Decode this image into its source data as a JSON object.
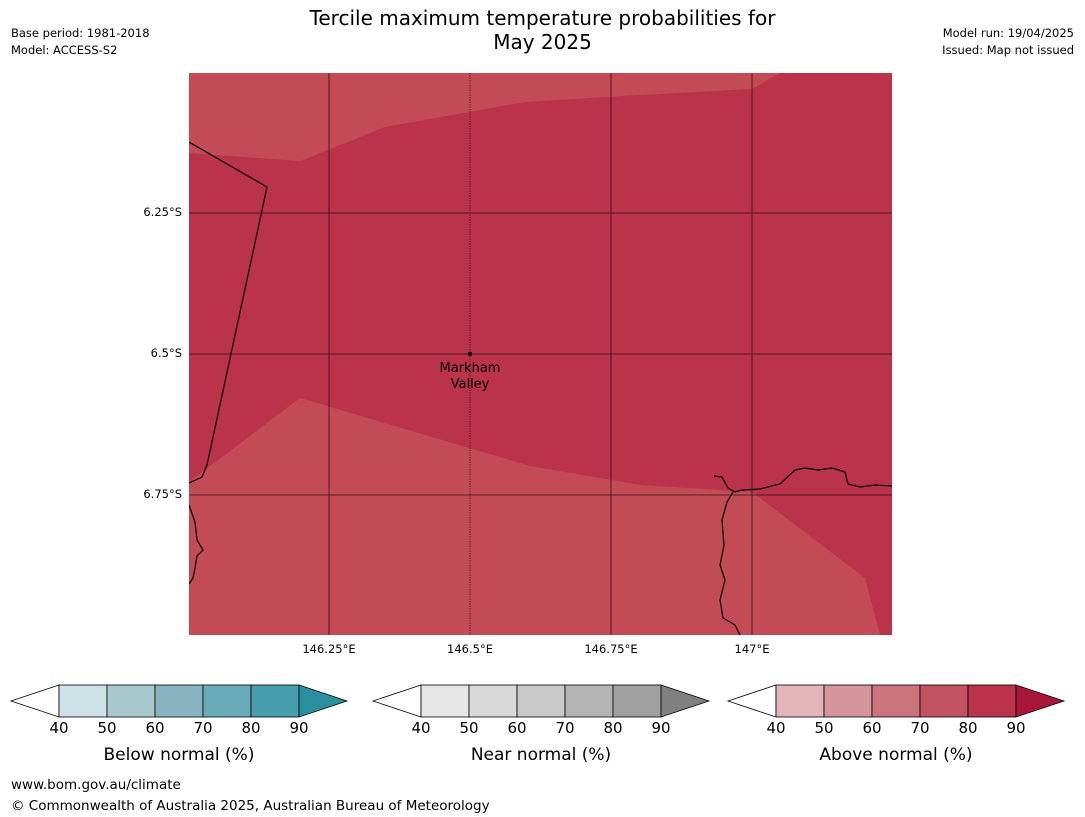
{
  "title_line1": "Tercile maximum temperature probabilities for",
  "title_line2": "May 2025",
  "meta_left": [
    "Base period: 1981-2018",
    "Model: ACCESS-S2"
  ],
  "meta_right": [
    "Model run: 19/04/2025",
    "Issued: Map not issued"
  ],
  "lat_labels": [
    "6.25°S",
    "6.5°S",
    "6.75°S"
  ],
  "lon_labels": [
    "146.25°E",
    "146.5°E",
    "146.75°E",
    "147°E"
  ],
  "place": {
    "line1": "Markham",
    "line2": "Valley"
  },
  "colorbars": [
    {
      "title": "Below normal (%)",
      "ticks": [
        "40",
        "50",
        "60",
        "70",
        "80",
        "90"
      ],
      "colors": [
        "#cde2e6",
        "#a8c8cd",
        "#88b4c1",
        "#6aabb9",
        "#479fae",
        "#2a8f9f"
      ]
    },
    {
      "title": "Near normal (%)",
      "ticks": [
        "40",
        "50",
        "60",
        "70",
        "80",
        "90"
      ],
      "colors": [
        "#e6e6e6",
        "#d9d9d9",
        "#c8c8c8",
        "#b4b4b4",
        "#a0a0a0",
        "#808080"
      ]
    },
    {
      "title": "Above normal (%)",
      "ticks": [
        "40",
        "50",
        "60",
        "70",
        "80",
        "90"
      ],
      "colors": [
        "#e2b5ba",
        "#d6949c",
        "#cc747c",
        "#c25260",
        "#bb334a",
        "#a8173a"
      ]
    }
  ],
  "map_colors": {
    "above_80_90": "#bb334a",
    "above_70_80": "#c24b56"
  },
  "footer": {
    "url": "www.bom.gov.au/climate",
    "copyright": "© Commonwealth of Australia 2025, Australian Bureau of Meteorology"
  }
}
